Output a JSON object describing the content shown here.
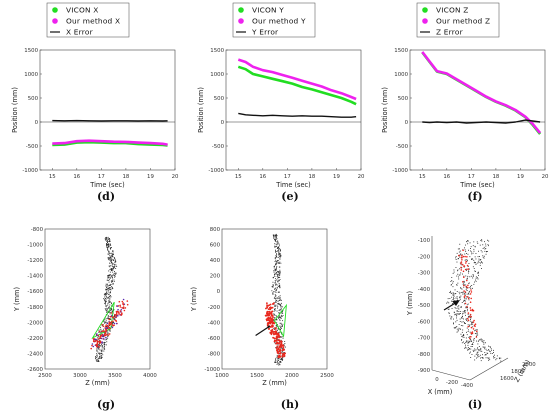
{
  "panel_labels": [
    "(d)",
    "(e)",
    "(f)",
    "(g)",
    "(h)",
    "(i)"
  ],
  "colors": {
    "vicon": "#22dd22",
    "ours": "#ee22ee",
    "error": "#111111",
    "cloud": "#2b2b2b",
    "traj_red": "#e8281e",
    "traj_purple": "#5a2bb0"
  },
  "chart_data": [
    {
      "type": "line",
      "panel": "(d)",
      "xlabel": "Time (sec)",
      "ylabel": "Position (mm)",
      "xlim": [
        14.5,
        20
      ],
      "ylim": [
        -1000,
        1500
      ],
      "xticks": [
        15,
        16,
        17,
        18,
        19,
        20
      ],
      "yticks": [
        -1000,
        -500,
        0,
        500,
        1000,
        1500
      ],
      "legend": [
        "VICON X",
        "Our method X",
        "X Error"
      ],
      "series": [
        {
          "name": "VICON X",
          "x": [
            15.0,
            15.5,
            16.0,
            16.5,
            17.0,
            17.5,
            18.0,
            18.5,
            19.0,
            19.5,
            19.7
          ],
          "y": [
            -480,
            -470,
            -430,
            -420,
            -430,
            -440,
            -440,
            -460,
            -470,
            -480,
            -490
          ]
        },
        {
          "name": "Our method X",
          "x": [
            15.0,
            15.5,
            16.0,
            16.5,
            17.0,
            17.5,
            18.0,
            18.5,
            19.0,
            19.5,
            19.7
          ],
          "y": [
            -450,
            -440,
            -400,
            -390,
            -400,
            -410,
            -415,
            -430,
            -440,
            -455,
            -470
          ]
        },
        {
          "name": "X Error",
          "x": [
            15.0,
            15.5,
            16.0,
            16.5,
            17.0,
            17.5,
            18.0,
            18.5,
            19.0,
            19.5,
            19.7
          ],
          "y": [
            30,
            25,
            30,
            25,
            20,
            25,
            25,
            20,
            25,
            20,
            25
          ]
        }
      ]
    },
    {
      "type": "line",
      "panel": "(e)",
      "xlabel": "Time (sec)",
      "ylabel": "Position (mm)",
      "xlim": [
        14.5,
        20
      ],
      "ylim": [
        -1000,
        1500
      ],
      "xticks": [
        15,
        16,
        17,
        18,
        19,
        20
      ],
      "yticks": [
        -1000,
        -500,
        0,
        500,
        1000,
        1500
      ],
      "legend": [
        "VICON Y",
        "Our method Y",
        "Y Error"
      ],
      "series": [
        {
          "name": "VICON Y",
          "x": [
            15.0,
            15.3,
            15.6,
            16.0,
            16.4,
            16.8,
            17.2,
            17.6,
            18.0,
            18.4,
            18.8,
            19.2,
            19.6,
            19.8
          ],
          "y": [
            1150,
            1100,
            1000,
            950,
            900,
            850,
            800,
            730,
            680,
            620,
            560,
            500,
            420,
            370
          ]
        },
        {
          "name": "Our method Y",
          "x": [
            15.0,
            15.3,
            15.6,
            16.0,
            16.4,
            16.8,
            17.2,
            17.6,
            18.0,
            18.4,
            18.8,
            19.2,
            19.6,
            19.8
          ],
          "y": [
            1300,
            1250,
            1150,
            1080,
            1040,
            980,
            920,
            860,
            800,
            740,
            660,
            600,
            520,
            480
          ]
        },
        {
          "name": "Y Error",
          "x": [
            15.0,
            15.3,
            15.6,
            16.0,
            16.4,
            16.8,
            17.2,
            17.6,
            18.0,
            18.4,
            18.8,
            19.2,
            19.6,
            19.8
          ],
          "y": [
            180,
            150,
            140,
            130,
            140,
            130,
            120,
            130,
            120,
            120,
            110,
            100,
            100,
            110
          ]
        }
      ]
    },
    {
      "type": "line",
      "panel": "(f)",
      "xlabel": "Time (sec)",
      "ylabel": "Position (mm)",
      "xlim": [
        14.5,
        20
      ],
      "ylim": [
        -1000,
        1500
      ],
      "xticks": [
        15,
        16,
        17,
        18,
        19,
        20
      ],
      "yticks": [
        -1000,
        -500,
        0,
        500,
        1000,
        1500
      ],
      "legend": [
        "VICON Z",
        "Our method Z",
        "Z Error"
      ],
      "series": [
        {
          "name": "VICON Z",
          "x": [
            15.0,
            15.3,
            15.6,
            16.0,
            16.4,
            16.8,
            17.2,
            17.6,
            18.0,
            18.4,
            18.8,
            19.2,
            19.5,
            19.8
          ],
          "y": [
            1450,
            1250,
            1050,
            1000,
            880,
            760,
            640,
            520,
            420,
            340,
            240,
            100,
            -60,
            -250
          ]
        },
        {
          "name": "Our method Z",
          "x": [
            15.0,
            15.3,
            15.6,
            16.0,
            16.4,
            16.8,
            17.2,
            17.6,
            18.0,
            18.4,
            18.8,
            19.2,
            19.5,
            19.8
          ],
          "y": [
            1460,
            1260,
            1060,
            1010,
            890,
            770,
            650,
            530,
            430,
            350,
            250,
            110,
            -40,
            -230
          ]
        },
        {
          "name": "Z Error",
          "x": [
            15.0,
            15.3,
            15.6,
            16.0,
            16.4,
            16.8,
            17.2,
            17.6,
            18.0,
            18.4,
            18.8,
            19.2,
            19.5,
            19.8
          ],
          "y": [
            0,
            -10,
            0,
            -10,
            0,
            -20,
            -10,
            0,
            -10,
            -20,
            0,
            40,
            20,
            0
          ]
        }
      ]
    },
    {
      "type": "scatter",
      "panel": "(g)",
      "xlabel": "Z (mm)",
      "ylabel": "Y (mm)",
      "xlim": [
        2500,
        4000
      ],
      "ylim": [
        -2600,
        -800
      ],
      "xticks": [
        2500,
        3000,
        3500,
        4000
      ],
      "yticks": [
        -800,
        -1000,
        -1200,
        -1400,
        -1600,
        -1800,
        -2000,
        -2200,
        -2400,
        -2600
      ]
    },
    {
      "type": "scatter",
      "panel": "(h)",
      "xlabel": "Z (mm)",
      "ylabel": "Y (mm)",
      "xlim": [
        1000,
        2500
      ],
      "ylim": [
        -1000,
        800
      ],
      "xticks": [
        1000,
        1500,
        2000,
        2500
      ],
      "yticks": [
        800,
        600,
        400,
        200,
        0,
        -200,
        -400,
        -600,
        -800,
        -1000
      ]
    },
    {
      "type": "scatter",
      "panel": "(i)",
      "xlabel": "X (mm)",
      "ylabel": "Y (mm)",
      "zlabel": "Z (mm)",
      "yticks": [
        -100,
        -200,
        -300,
        -400,
        -500,
        -600,
        -700,
        -800,
        -900
      ],
      "xticks": [
        0,
        -200,
        -400
      ],
      "zticks": [
        1600,
        1800,
        2000
      ]
    }
  ]
}
